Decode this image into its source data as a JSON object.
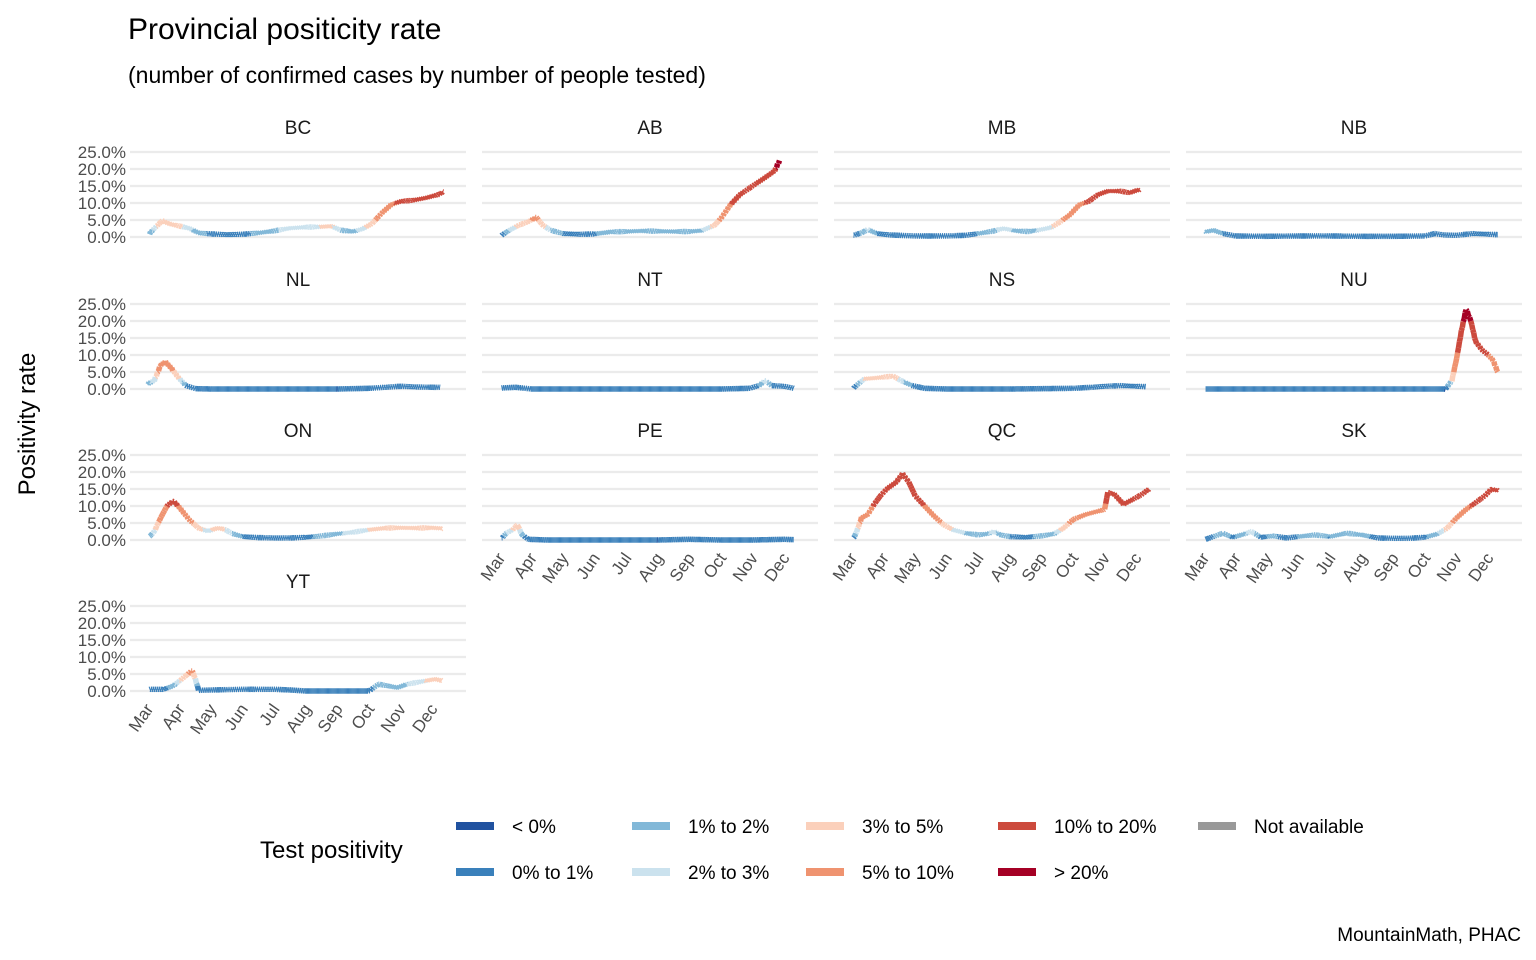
{
  "chart_data": {
    "type": "line",
    "title": "Provincial positicity rate",
    "subtitle": "(number of confirmed cases by number of people tested)",
    "ylabel": "Positivity rate",
    "xlabel": "",
    "caption": "MountainMath, PHAC",
    "ylim": [
      0,
      25
    ],
    "yticks": [
      0,
      5,
      10,
      15,
      20,
      25
    ],
    "ytick_labels": [
      "0.0%",
      "5.0%",
      "10.0%",
      "15.0%",
      "20.0%",
      "25.0%"
    ],
    "x_unit": "month index (0 = Mar 1, 2020)",
    "xlim": [
      0,
      9.5
    ],
    "xticks": [
      0,
      1,
      2,
      3,
      4,
      5,
      6,
      7,
      8,
      9
    ],
    "xtick_labels": [
      "Mar",
      "Apr",
      "May",
      "Jun",
      "Jul",
      "Aug",
      "Sep",
      "Oct",
      "Nov",
      "Dec"
    ],
    "grid": "horizontal",
    "legend": {
      "title": "Test positivity",
      "placement": "bottom",
      "entries": [
        {
          "label": "< 0%",
          "color": "#2152a0"
        },
        {
          "label": "0% to 1%",
          "color": "#3a80bb"
        },
        {
          "label": "1% to 2%",
          "color": "#82b8d8"
        },
        {
          "label": "2% to 3%",
          "color": "#cbe2ee"
        },
        {
          "label": "3% to 5%",
          "color": "#fbd0bb"
        },
        {
          "label": "5% to 10%",
          "color": "#ef9370"
        },
        {
          "label": "10% to 20%",
          "color": "#cc4a3d"
        },
        {
          "label": "> 20%",
          "color": "#a50025"
        },
        {
          "label": "Not available",
          "color": "#999999"
        }
      ]
    },
    "panels": [
      {
        "name": "BC",
        "points": [
          [
            0.05,
            1.0
          ],
          [
            0.2,
            2.5
          ],
          [
            0.45,
            4.8
          ],
          [
            0.7,
            3.8
          ],
          [
            1.0,
            3.2
          ],
          [
            1.3,
            2.6
          ],
          [
            1.6,
            1.2
          ],
          [
            2.0,
            0.9
          ],
          [
            2.5,
            0.7
          ],
          [
            3.0,
            0.8
          ],
          [
            3.5,
            1.2
          ],
          [
            4.0,
            1.8
          ],
          [
            4.5,
            2.6
          ],
          [
            5.0,
            2.9
          ],
          [
            5.5,
            3.0
          ],
          [
            5.8,
            3.2
          ],
          [
            6.1,
            2.0
          ],
          [
            6.5,
            1.6
          ],
          [
            6.8,
            2.4
          ],
          [
            7.1,
            4.0
          ],
          [
            7.4,
            7.0
          ],
          [
            7.7,
            9.5
          ],
          [
            8.0,
            10.5
          ],
          [
            8.4,
            10.8
          ],
          [
            8.8,
            11.5
          ],
          [
            9.2,
            12.5
          ],
          [
            9.35,
            13.2
          ]
        ]
      },
      {
        "name": "AB",
        "points": [
          [
            0.05,
            0.5
          ],
          [
            0.3,
            2.0
          ],
          [
            0.6,
            3.5
          ],
          [
            0.9,
            4.5
          ],
          [
            1.15,
            5.8
          ],
          [
            1.35,
            3.5
          ],
          [
            1.6,
            2.0
          ],
          [
            2.0,
            1.0
          ],
          [
            2.5,
            0.8
          ],
          [
            3.0,
            0.9
          ],
          [
            3.5,
            1.5
          ],
          [
            4.0,
            1.6
          ],
          [
            4.5,
            1.8
          ],
          [
            5.0,
            1.7
          ],
          [
            5.5,
            1.6
          ],
          [
            6.0,
            1.6
          ],
          [
            6.4,
            1.9
          ],
          [
            6.8,
            3.5
          ],
          [
            7.0,
            5.5
          ],
          [
            7.3,
            9.5
          ],
          [
            7.6,
            12.5
          ],
          [
            8.0,
            15.0
          ],
          [
            8.4,
            17.5
          ],
          [
            8.7,
            19.5
          ],
          [
            8.85,
            22.5
          ]
        ]
      },
      {
        "name": "MB",
        "points": [
          [
            0.05,
            0.5
          ],
          [
            0.3,
            1.2
          ],
          [
            0.5,
            2.2
          ],
          [
            0.8,
            1.0
          ],
          [
            1.2,
            0.6
          ],
          [
            2.0,
            0.3
          ],
          [
            3.0,
            0.3
          ],
          [
            3.6,
            0.5
          ],
          [
            4.0,
            1.0
          ],
          [
            4.5,
            1.8
          ],
          [
            4.8,
            2.5
          ],
          [
            5.2,
            1.8
          ],
          [
            5.6,
            1.6
          ],
          [
            6.0,
            2.2
          ],
          [
            6.3,
            2.8
          ],
          [
            6.6,
            4.5
          ],
          [
            6.9,
            6.5
          ],
          [
            7.2,
            9.5
          ],
          [
            7.5,
            10.5
          ],
          [
            7.8,
            12.5
          ],
          [
            8.1,
            13.5
          ],
          [
            8.5,
            13.5
          ],
          [
            8.8,
            13.0
          ],
          [
            9.1,
            14.0
          ]
        ]
      },
      {
        "name": "NB",
        "points": [
          [
            0.05,
            1.5
          ],
          [
            0.3,
            2.0
          ],
          [
            0.6,
            1.0
          ],
          [
            1.0,
            0.3
          ],
          [
            2.0,
            0.2
          ],
          [
            3.0,
            0.3
          ],
          [
            4.0,
            0.3
          ],
          [
            5.0,
            0.2
          ],
          [
            6.0,
            0.2
          ],
          [
            7.0,
            0.3
          ],
          [
            7.3,
            1.0
          ],
          [
            7.6,
            0.6
          ],
          [
            8.0,
            0.5
          ],
          [
            8.5,
            1.0
          ],
          [
            9.0,
            0.8
          ],
          [
            9.3,
            0.7
          ]
        ]
      },
      {
        "name": "NL",
        "points": [
          [
            0.0,
            1.5
          ],
          [
            0.2,
            2.5
          ],
          [
            0.4,
            7.0
          ],
          [
            0.55,
            8.0
          ],
          [
            0.75,
            6.0
          ],
          [
            0.95,
            3.5
          ],
          [
            1.2,
            1.0
          ],
          [
            1.5,
            0.1
          ],
          [
            2.0,
            0.0
          ],
          [
            3.0,
            0.0
          ],
          [
            4.0,
            0.0
          ],
          [
            5.0,
            0.0
          ],
          [
            6.0,
            0.0
          ],
          [
            7.0,
            0.2
          ],
          [
            7.5,
            0.5
          ],
          [
            8.0,
            0.8
          ],
          [
            8.5,
            0.6
          ],
          [
            9.0,
            0.5
          ],
          [
            9.25,
            0.5
          ]
        ]
      },
      {
        "name": "NT",
        "points": [
          [
            0.05,
            0.3
          ],
          [
            0.5,
            0.5
          ],
          [
            1.0,
            0.0
          ],
          [
            2.0,
            0.0
          ],
          [
            3.0,
            0.0
          ],
          [
            4.0,
            0.0
          ],
          [
            5.0,
            0.0
          ],
          [
            6.0,
            0.0
          ],
          [
            7.0,
            0.0
          ],
          [
            7.9,
            0.2
          ],
          [
            8.2,
            1.0
          ],
          [
            8.4,
            2.5
          ],
          [
            8.6,
            1.0
          ],
          [
            9.0,
            0.8
          ],
          [
            9.3,
            0.2
          ]
        ]
      },
      {
        "name": "NS",
        "points": [
          [
            0.05,
            0.3
          ],
          [
            0.2,
            1.5
          ],
          [
            0.4,
            3.0
          ],
          [
            0.7,
            3.2
          ],
          [
            1.0,
            3.5
          ],
          [
            1.3,
            3.8
          ],
          [
            1.55,
            2.5
          ],
          [
            1.9,
            1.0
          ],
          [
            2.3,
            0.2
          ],
          [
            3.0,
            0.0
          ],
          [
            4.0,
            0.0
          ],
          [
            5.0,
            0.0
          ],
          [
            6.0,
            0.1
          ],
          [
            7.0,
            0.2
          ],
          [
            7.6,
            0.5
          ],
          [
            8.0,
            0.8
          ],
          [
            8.5,
            1.0
          ],
          [
            9.0,
            0.8
          ],
          [
            9.3,
            0.7
          ]
        ]
      },
      {
        "name": "NU",
        "points": [
          [
            0.05,
            0.0
          ],
          [
            1.0,
            0.0
          ],
          [
            2.0,
            0.0
          ],
          [
            3.0,
            0.0
          ],
          [
            4.0,
            0.0
          ],
          [
            5.0,
            0.0
          ],
          [
            6.0,
            0.0
          ],
          [
            7.0,
            0.0
          ],
          [
            7.65,
            0.0
          ],
          [
            7.85,
            2.5
          ],
          [
            8.0,
            9.0
          ],
          [
            8.15,
            17.0
          ],
          [
            8.3,
            23.5
          ],
          [
            8.45,
            20.0
          ],
          [
            8.6,
            14.0
          ],
          [
            8.8,
            11.5
          ],
          [
            9.0,
            10.0
          ],
          [
            9.15,
            8.5
          ],
          [
            9.3,
            5.0
          ]
        ]
      },
      {
        "name": "ON",
        "points": [
          [
            0.05,
            1.0
          ],
          [
            0.2,
            2.5
          ],
          [
            0.4,
            6.5
          ],
          [
            0.6,
            10.0
          ],
          [
            0.8,
            11.5
          ],
          [
            1.0,
            9.5
          ],
          [
            1.3,
            6.0
          ],
          [
            1.6,
            3.5
          ],
          [
            1.9,
            2.6
          ],
          [
            2.2,
            3.5
          ],
          [
            2.4,
            3.2
          ],
          [
            2.7,
            1.8
          ],
          [
            3.0,
            1.0
          ],
          [
            3.5,
            0.7
          ],
          [
            4.0,
            0.6
          ],
          [
            4.5,
            0.6
          ],
          [
            5.0,
            0.8
          ],
          [
            5.5,
            1.2
          ],
          [
            6.0,
            1.8
          ],
          [
            6.5,
            2.3
          ],
          [
            7.0,
            3.0
          ],
          [
            7.5,
            3.5
          ],
          [
            8.0,
            3.6
          ],
          [
            8.5,
            3.5
          ],
          [
            9.0,
            3.6
          ],
          [
            9.3,
            3.4
          ]
        ]
      },
      {
        "name": "PE",
        "points": [
          [
            0.05,
            0.5
          ],
          [
            0.2,
            2.0
          ],
          [
            0.4,
            3.0
          ],
          [
            0.55,
            4.5
          ],
          [
            0.7,
            1.5
          ],
          [
            0.9,
            0.2
          ],
          [
            1.5,
            0.0
          ],
          [
            3.0,
            0.0
          ],
          [
            4.0,
            0.0
          ],
          [
            5.0,
            0.0
          ],
          [
            6.0,
            0.2
          ],
          [
            7.0,
            0.0
          ],
          [
            8.0,
            0.0
          ],
          [
            9.0,
            0.2
          ],
          [
            9.3,
            0.1
          ]
        ]
      },
      {
        "name": "QC",
        "points": [
          [
            0.05,
            0.5
          ],
          [
            0.15,
            2.5
          ],
          [
            0.3,
            6.5
          ],
          [
            0.5,
            7.5
          ],
          [
            0.7,
            10.5
          ],
          [
            0.9,
            13.0
          ],
          [
            1.1,
            15.0
          ],
          [
            1.4,
            17.0
          ],
          [
            1.6,
            19.5
          ],
          [
            1.8,
            17.0
          ],
          [
            2.0,
            13.0
          ],
          [
            2.3,
            10.0
          ],
          [
            2.6,
            7.0
          ],
          [
            2.9,
            4.5
          ],
          [
            3.2,
            3.0
          ],
          [
            3.6,
            2.0
          ],
          [
            4.0,
            1.5
          ],
          [
            4.3,
            1.8
          ],
          [
            4.5,
            2.5
          ],
          [
            4.7,
            1.5
          ],
          [
            5.0,
            1.0
          ],
          [
            5.5,
            0.8
          ],
          [
            6.0,
            1.2
          ],
          [
            6.4,
            1.8
          ],
          [
            6.7,
            3.5
          ],
          [
            7.0,
            6.0
          ],
          [
            7.4,
            7.5
          ],
          [
            7.8,
            8.5
          ],
          [
            8.0,
            9.0
          ],
          [
            8.1,
            14.0
          ],
          [
            8.3,
            13.5
          ],
          [
            8.6,
            10.5
          ],
          [
            8.9,
            12.0
          ],
          [
            9.2,
            13.5
          ],
          [
            9.4,
            15.0
          ]
        ]
      },
      {
        "name": "SK",
        "points": [
          [
            0.05,
            0.2
          ],
          [
            0.3,
            1.0
          ],
          [
            0.6,
            2.0
          ],
          [
            0.9,
            0.8
          ],
          [
            1.2,
            1.5
          ],
          [
            1.5,
            2.5
          ],
          [
            1.8,
            0.8
          ],
          [
            2.2,
            1.2
          ],
          [
            2.6,
            0.6
          ],
          [
            3.0,
            1.0
          ],
          [
            3.5,
            1.5
          ],
          [
            4.0,
            1.0
          ],
          [
            4.5,
            2.0
          ],
          [
            5.0,
            1.5
          ],
          [
            5.5,
            0.6
          ],
          [
            6.0,
            0.5
          ],
          [
            6.5,
            0.5
          ],
          [
            7.0,
            0.8
          ],
          [
            7.4,
            1.8
          ],
          [
            7.7,
            3.5
          ],
          [
            8.0,
            6.5
          ],
          [
            8.3,
            9.0
          ],
          [
            8.6,
            11.0
          ],
          [
            8.9,
            13.0
          ],
          [
            9.1,
            15.0
          ],
          [
            9.3,
            14.5
          ]
        ]
      },
      {
        "name": "YT",
        "points": [
          [
            0.05,
            0.5
          ],
          [
            0.5,
            0.5
          ],
          [
            0.8,
            1.5
          ],
          [
            1.0,
            3.0
          ],
          [
            1.2,
            4.5
          ],
          [
            1.4,
            6.0
          ],
          [
            1.5,
            3.5
          ],
          [
            1.6,
            0.2
          ],
          [
            2.0,
            0.3
          ],
          [
            3.0,
            0.5
          ],
          [
            4.0,
            0.5
          ],
          [
            4.5,
            0.3
          ],
          [
            5.0,
            0.0
          ],
          [
            6.0,
            0.0
          ],
          [
            7.0,
            0.0
          ],
          [
            7.3,
            2.0
          ],
          [
            7.6,
            1.5
          ],
          [
            7.9,
            1.0
          ],
          [
            8.2,
            2.0
          ],
          [
            8.5,
            2.5
          ],
          [
            8.8,
            3.0
          ],
          [
            9.1,
            3.5
          ],
          [
            9.3,
            3.0
          ]
        ]
      }
    ]
  }
}
